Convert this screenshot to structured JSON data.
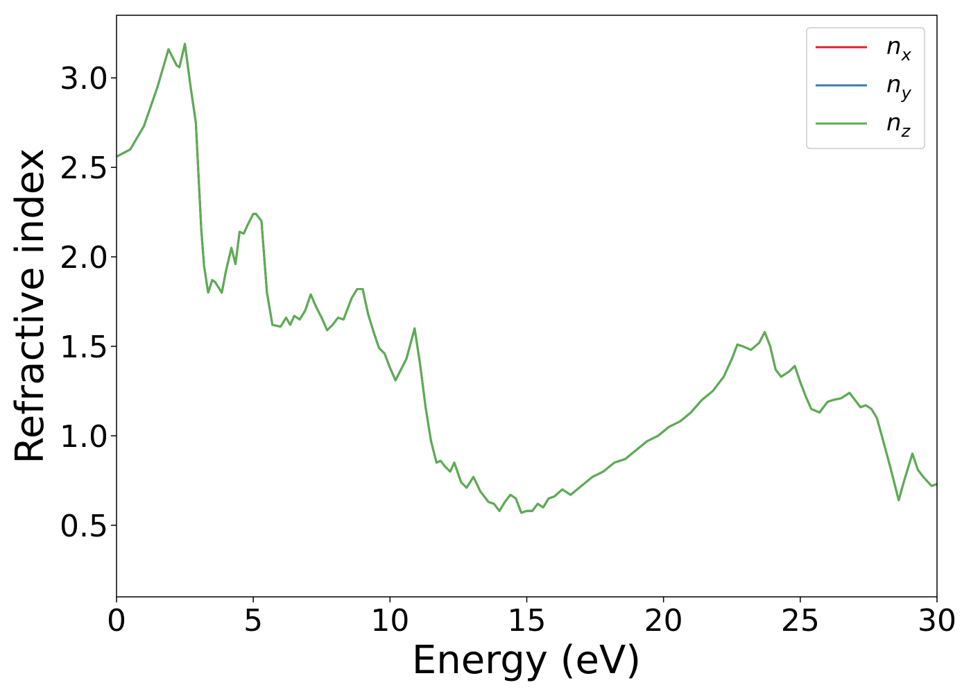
{
  "chart_data": {
    "type": "line",
    "xlabel": "Energy (eV)",
    "ylabel": "Refractive index",
    "xlim": [
      0,
      30
    ],
    "ylim": [
      0.1,
      3.35
    ],
    "xticks": [
      0,
      5,
      10,
      15,
      20,
      25,
      30
    ],
    "xtick_labels": [
      "0",
      "5",
      "10",
      "15",
      "20",
      "25",
      "30"
    ],
    "yticks": [
      0.5,
      1.0,
      1.5,
      2.0,
      2.5,
      3.0
    ],
    "ytick_labels": [
      "0.5",
      "1.0",
      "1.5",
      "2.0",
      "2.5",
      "3.0"
    ],
    "grid": false,
    "legend_position": "top-right",
    "legend": [
      {
        "base": "n",
        "sub": "x",
        "color": "#d62728"
      },
      {
        "base": "n",
        "sub": "y",
        "color": "#3a7bb4"
      },
      {
        "base": "n",
        "sub": "z",
        "color": "#5aae50"
      }
    ],
    "x": [
      0,
      0.5,
      1.0,
      1.5,
      1.9,
      2.2,
      2.3,
      2.5,
      2.7,
      2.9,
      3.1,
      3.2,
      3.35,
      3.5,
      3.6,
      3.85,
      4.0,
      4.2,
      4.35,
      4.5,
      4.65,
      4.8,
      5.0,
      5.1,
      5.3,
      5.5,
      5.7,
      6.0,
      6.2,
      6.35,
      6.5,
      6.7,
      6.9,
      7.1,
      7.3,
      7.5,
      7.7,
      7.9,
      8.1,
      8.3,
      8.6,
      8.8,
      9.0,
      9.2,
      9.4,
      9.6,
      9.8,
      10.0,
      10.2,
      10.4,
      10.6,
      10.9,
      11.1,
      11.3,
      11.5,
      11.7,
      11.85,
      12.0,
      12.2,
      12.35,
      12.6,
      12.8,
      13.05,
      13.3,
      13.6,
      13.8,
      14.0,
      14.2,
      14.4,
      14.6,
      14.8,
      15.0,
      15.2,
      15.4,
      15.6,
      15.8,
      16.0,
      16.3,
      16.6,
      17.0,
      17.4,
      17.8,
      18.2,
      18.6,
      19.0,
      19.4,
      19.8,
      20.2,
      20.6,
      21.0,
      21.4,
      21.8,
      22.2,
      22.5,
      22.7,
      22.9,
      23.2,
      23.5,
      23.7,
      23.9,
      24.1,
      24.3,
      24.6,
      24.8,
      25.0,
      25.2,
      25.4,
      25.7,
      26.0,
      26.2,
      26.5,
      26.8,
      27.0,
      27.2,
      27.4,
      27.6,
      27.8,
      28.0,
      28.3,
      28.6,
      28.8,
      29.1,
      29.3,
      29.5,
      29.8,
      30.0
    ],
    "series": [
      {
        "name": "n_x",
        "values": [
          2.56,
          2.6,
          2.73,
          2.95,
          3.16,
          3.07,
          3.06,
          3.19,
          2.96,
          2.75,
          2.15,
          1.95,
          1.8,
          1.87,
          1.86,
          1.8,
          1.92,
          2.05,
          1.96,
          2.14,
          2.13,
          2.18,
          2.24,
          2.24,
          2.2,
          1.8,
          1.62,
          1.61,
          1.66,
          1.62,
          1.67,
          1.65,
          1.7,
          1.79,
          1.72,
          1.66,
          1.59,
          1.62,
          1.66,
          1.65,
          1.77,
          1.82,
          1.82,
          1.68,
          1.58,
          1.49,
          1.46,
          1.38,
          1.31,
          1.37,
          1.43,
          1.6,
          1.4,
          1.16,
          0.97,
          0.85,
          0.86,
          0.83,
          0.8,
          0.85,
          0.74,
          0.71,
          0.77,
          0.69,
          0.63,
          0.62,
          0.58,
          0.63,
          0.67,
          0.65,
          0.57,
          0.58,
          0.58,
          0.62,
          0.6,
          0.65,
          0.66,
          0.7,
          0.67,
          0.72,
          0.77,
          0.8,
          0.85,
          0.87,
          0.92,
          0.97,
          1.0,
          1.05,
          1.08,
          1.13,
          1.2,
          1.25,
          1.33,
          1.43,
          1.51,
          1.5,
          1.48,
          1.52,
          1.58,
          1.5,
          1.37,
          1.33,
          1.36,
          1.39,
          1.3,
          1.22,
          1.15,
          1.13,
          1.19,
          1.2,
          1.21,
          1.24,
          1.2,
          1.16,
          1.17,
          1.15,
          1.1,
          0.99,
          0.82,
          0.64,
          0.75,
          0.9,
          0.81,
          0.77,
          0.72,
          0.73
        ]
      },
      {
        "name": "n_y",
        "values": [
          2.56,
          2.6,
          2.73,
          2.95,
          3.16,
          3.07,
          3.06,
          3.19,
          2.96,
          2.75,
          2.15,
          1.95,
          1.8,
          1.87,
          1.86,
          1.8,
          1.92,
          2.05,
          1.96,
          2.14,
          2.13,
          2.18,
          2.24,
          2.24,
          2.2,
          1.8,
          1.62,
          1.61,
          1.66,
          1.62,
          1.67,
          1.65,
          1.7,
          1.79,
          1.72,
          1.66,
          1.59,
          1.62,
          1.66,
          1.65,
          1.77,
          1.82,
          1.82,
          1.68,
          1.58,
          1.49,
          1.46,
          1.38,
          1.31,
          1.37,
          1.43,
          1.6,
          1.4,
          1.16,
          0.97,
          0.85,
          0.86,
          0.83,
          0.8,
          0.85,
          0.74,
          0.71,
          0.77,
          0.69,
          0.63,
          0.62,
          0.58,
          0.63,
          0.67,
          0.65,
          0.57,
          0.58,
          0.58,
          0.62,
          0.6,
          0.65,
          0.66,
          0.7,
          0.67,
          0.72,
          0.77,
          0.8,
          0.85,
          0.87,
          0.92,
          0.97,
          1.0,
          1.05,
          1.08,
          1.13,
          1.2,
          1.25,
          1.33,
          1.43,
          1.51,
          1.5,
          1.48,
          1.52,
          1.58,
          1.5,
          1.37,
          1.33,
          1.36,
          1.39,
          1.3,
          1.22,
          1.15,
          1.13,
          1.19,
          1.2,
          1.21,
          1.24,
          1.2,
          1.16,
          1.17,
          1.15,
          1.1,
          0.99,
          0.82,
          0.64,
          0.75,
          0.9,
          0.81,
          0.77,
          0.72,
          0.73
        ]
      },
      {
        "name": "n_z",
        "values": [
          2.56,
          2.6,
          2.73,
          2.95,
          3.16,
          3.07,
          3.06,
          3.19,
          2.96,
          2.75,
          2.15,
          1.95,
          1.8,
          1.87,
          1.86,
          1.8,
          1.92,
          2.05,
          1.96,
          2.14,
          2.13,
          2.18,
          2.24,
          2.24,
          2.2,
          1.8,
          1.62,
          1.61,
          1.66,
          1.62,
          1.67,
          1.65,
          1.7,
          1.79,
          1.72,
          1.66,
          1.59,
          1.62,
          1.66,
          1.65,
          1.77,
          1.82,
          1.82,
          1.68,
          1.58,
          1.49,
          1.46,
          1.38,
          1.31,
          1.37,
          1.43,
          1.6,
          1.4,
          1.16,
          0.97,
          0.85,
          0.86,
          0.83,
          0.8,
          0.85,
          0.74,
          0.71,
          0.77,
          0.69,
          0.63,
          0.62,
          0.58,
          0.63,
          0.67,
          0.65,
          0.57,
          0.58,
          0.58,
          0.62,
          0.6,
          0.65,
          0.66,
          0.7,
          0.67,
          0.72,
          0.77,
          0.8,
          0.85,
          0.87,
          0.92,
          0.97,
          1.0,
          1.05,
          1.08,
          1.13,
          1.2,
          1.25,
          1.33,
          1.43,
          1.51,
          1.5,
          1.48,
          1.52,
          1.58,
          1.5,
          1.37,
          1.33,
          1.36,
          1.39,
          1.3,
          1.22,
          1.15,
          1.13,
          1.19,
          1.2,
          1.21,
          1.24,
          1.2,
          1.16,
          1.17,
          1.15,
          1.1,
          0.99,
          0.82,
          0.64,
          0.75,
          0.9,
          0.81,
          0.77,
          0.72,
          0.73
        ]
      }
    ]
  }
}
